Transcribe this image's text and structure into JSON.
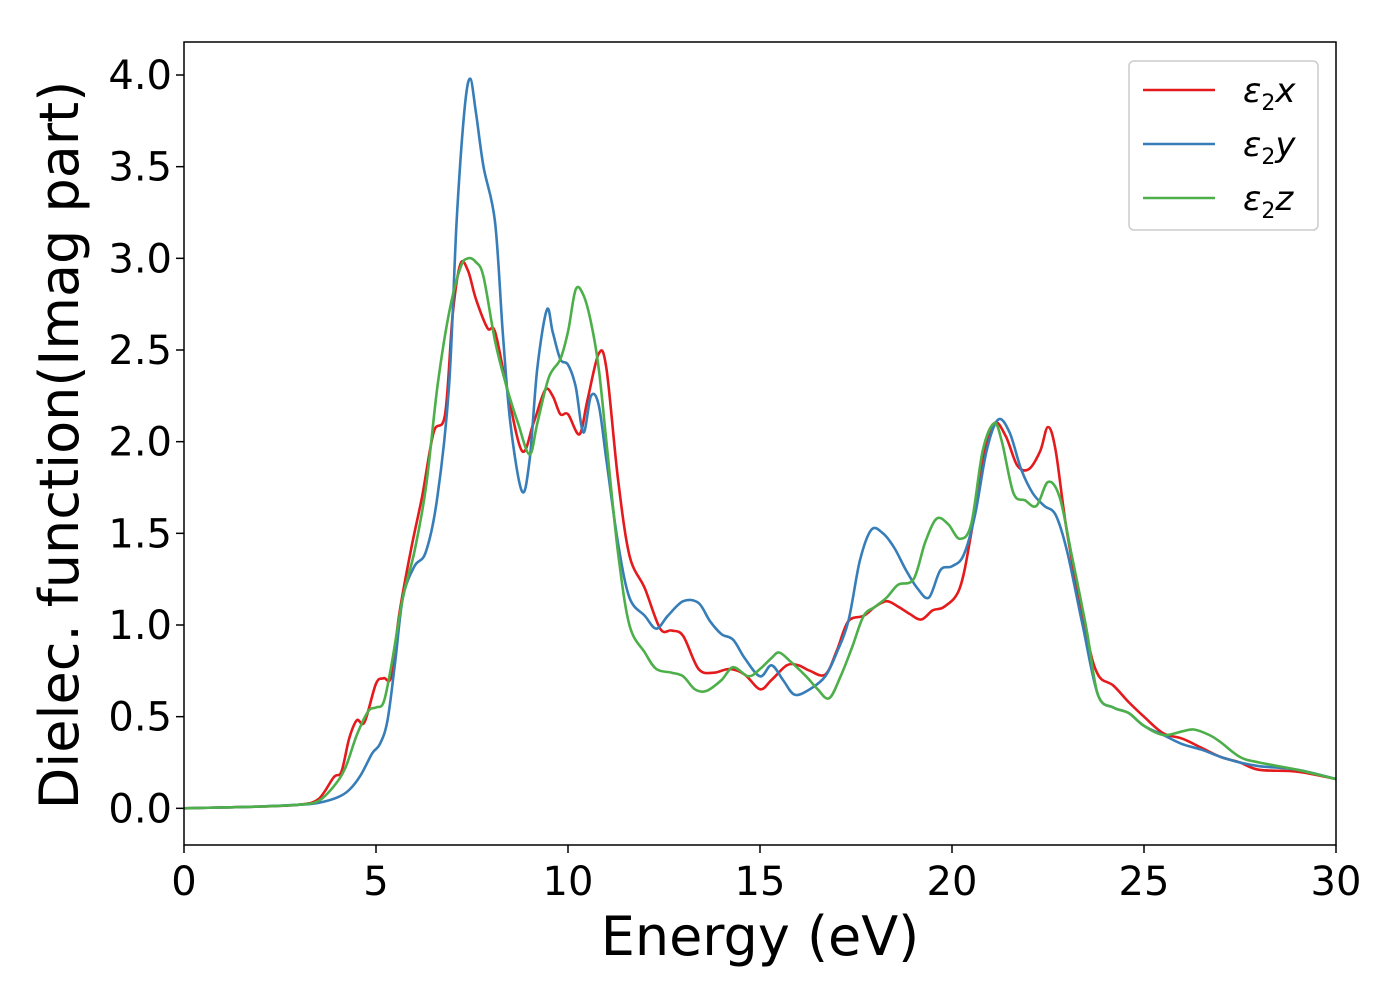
{
  "chart_data": {
    "type": "line",
    "title": "",
    "xlabel": "Energy (eV)",
    "ylabel": "Dielec. function(Imag part)",
    "xlim": [
      0,
      30
    ],
    "ylim": [
      -0.2,
      4.18
    ],
    "xticks": [
      0,
      5,
      10,
      15,
      20,
      25,
      30
    ],
    "yticks": [
      0.0,
      0.5,
      1.0,
      1.5,
      2.0,
      2.5,
      3.0,
      3.5,
      4.0
    ],
    "xtick_labels": [
      "0",
      "5",
      "10",
      "15",
      "20",
      "25",
      "30"
    ],
    "ytick_labels": [
      "0.0",
      "0.5",
      "1.0",
      "1.5",
      "2.0",
      "2.5",
      "3.0",
      "3.5",
      "4.0"
    ],
    "grid": false,
    "legend_position": "top-right",
    "series": [
      {
        "name": "x",
        "legend_symbol": "ε",
        "legend_subscript": "2",
        "color": "#e41a1c",
        "points": [
          [
            0,
            0.0
          ],
          [
            1,
            0.005
          ],
          [
            2,
            0.01
          ],
          [
            3,
            0.02
          ],
          [
            3.5,
            0.05
          ],
          [
            3.9,
            0.17
          ],
          [
            4.1,
            0.2
          ],
          [
            4.3,
            0.38
          ],
          [
            4.5,
            0.48
          ],
          [
            4.7,
            0.47
          ],
          [
            5.0,
            0.68
          ],
          [
            5.2,
            0.71
          ],
          [
            5.4,
            0.72
          ],
          [
            5.6,
            1.05
          ],
          [
            5.9,
            1.4
          ],
          [
            6.2,
            1.7
          ],
          [
            6.5,
            2.05
          ],
          [
            6.8,
            2.15
          ],
          [
            7.0,
            2.7
          ],
          [
            7.2,
            2.97
          ],
          [
            7.4,
            2.93
          ],
          [
            7.6,
            2.78
          ],
          [
            7.9,
            2.62
          ],
          [
            8.1,
            2.6
          ],
          [
            8.4,
            2.3
          ],
          [
            8.8,
            1.95
          ],
          [
            9.1,
            2.1
          ],
          [
            9.4,
            2.28
          ],
          [
            9.6,
            2.25
          ],
          [
            9.8,
            2.15
          ],
          [
            10.0,
            2.15
          ],
          [
            10.3,
            2.04
          ],
          [
            10.5,
            2.22
          ],
          [
            10.8,
            2.48
          ],
          [
            11.0,
            2.4
          ],
          [
            11.3,
            1.8
          ],
          [
            11.6,
            1.38
          ],
          [
            12.0,
            1.2
          ],
          [
            12.4,
            0.98
          ],
          [
            12.7,
            0.97
          ],
          [
            13.0,
            0.94
          ],
          [
            13.4,
            0.76
          ],
          [
            13.8,
            0.74
          ],
          [
            14.2,
            0.76
          ],
          [
            14.6,
            0.73
          ],
          [
            15.0,
            0.65
          ],
          [
            15.3,
            0.7
          ],
          [
            15.7,
            0.78
          ],
          [
            16.0,
            0.78
          ],
          [
            16.3,
            0.75
          ],
          [
            16.7,
            0.73
          ],
          [
            17.0,
            0.86
          ],
          [
            17.3,
            1.02
          ],
          [
            17.7,
            1.05
          ],
          [
            18.0,
            1.1
          ],
          [
            18.3,
            1.13
          ],
          [
            18.6,
            1.1
          ],
          [
            18.9,
            1.06
          ],
          [
            19.2,
            1.03
          ],
          [
            19.5,
            1.08
          ],
          [
            19.8,
            1.1
          ],
          [
            20.2,
            1.2
          ],
          [
            20.5,
            1.5
          ],
          [
            20.8,
            1.9
          ],
          [
            21.1,
            2.1
          ],
          [
            21.4,
            2.03
          ],
          [
            21.7,
            1.87
          ],
          [
            22.0,
            1.85
          ],
          [
            22.3,
            1.95
          ],
          [
            22.5,
            2.08
          ],
          [
            22.7,
            1.95
          ],
          [
            23.0,
            1.5
          ],
          [
            23.5,
            0.95
          ],
          [
            23.8,
            0.73
          ],
          [
            24.2,
            0.67
          ],
          [
            24.6,
            0.58
          ],
          [
            25.0,
            0.5
          ],
          [
            25.5,
            0.41
          ],
          [
            26.0,
            0.38
          ],
          [
            26.5,
            0.33
          ],
          [
            27.0,
            0.28
          ],
          [
            27.5,
            0.25
          ],
          [
            28.0,
            0.21
          ],
          [
            29.0,
            0.2
          ],
          [
            30,
            0.16
          ]
        ]
      },
      {
        "name": "y",
        "legend_symbol": "ε",
        "legend_subscript": "2",
        "color": "#377eb8",
        "points": [
          [
            0,
            0.0
          ],
          [
            1,
            0.005
          ],
          [
            2,
            0.01
          ],
          [
            3,
            0.02
          ],
          [
            3.5,
            0.03
          ],
          [
            4.0,
            0.06
          ],
          [
            4.3,
            0.1
          ],
          [
            4.6,
            0.18
          ],
          [
            4.9,
            0.3
          ],
          [
            5.1,
            0.35
          ],
          [
            5.3,
            0.48
          ],
          [
            5.5,
            0.8
          ],
          [
            5.7,
            1.15
          ],
          [
            6.0,
            1.32
          ],
          [
            6.3,
            1.4
          ],
          [
            6.6,
            1.7
          ],
          [
            6.9,
            2.3
          ],
          [
            7.1,
            3.2
          ],
          [
            7.3,
            3.8
          ],
          [
            7.45,
            3.98
          ],
          [
            7.6,
            3.8
          ],
          [
            7.8,
            3.5
          ],
          [
            8.1,
            3.2
          ],
          [
            8.3,
            2.6
          ],
          [
            8.5,
            2.1
          ],
          [
            8.8,
            1.73
          ],
          [
            9.0,
            1.9
          ],
          [
            9.2,
            2.4
          ],
          [
            9.45,
            2.72
          ],
          [
            9.6,
            2.6
          ],
          [
            9.8,
            2.45
          ],
          [
            10.0,
            2.42
          ],
          [
            10.2,
            2.3
          ],
          [
            10.4,
            2.05
          ],
          [
            10.6,
            2.25
          ],
          [
            10.8,
            2.2
          ],
          [
            11.0,
            1.9
          ],
          [
            11.3,
            1.45
          ],
          [
            11.6,
            1.15
          ],
          [
            12.0,
            1.05
          ],
          [
            12.3,
            0.98
          ],
          [
            12.6,
            1.05
          ],
          [
            13.0,
            1.13
          ],
          [
            13.4,
            1.12
          ],
          [
            13.7,
            1.02
          ],
          [
            14.0,
            0.95
          ],
          [
            14.3,
            0.92
          ],
          [
            14.6,
            0.82
          ],
          [
            15.0,
            0.72
          ],
          [
            15.3,
            0.78
          ],
          [
            15.6,
            0.7
          ],
          [
            15.9,
            0.62
          ],
          [
            16.3,
            0.65
          ],
          [
            16.7,
            0.72
          ],
          [
            17.0,
            0.85
          ],
          [
            17.3,
            1.02
          ],
          [
            17.6,
            1.35
          ],
          [
            17.9,
            1.52
          ],
          [
            18.2,
            1.5
          ],
          [
            18.5,
            1.42
          ],
          [
            18.8,
            1.3
          ],
          [
            19.1,
            1.2
          ],
          [
            19.4,
            1.15
          ],
          [
            19.7,
            1.3
          ],
          [
            20.0,
            1.32
          ],
          [
            20.3,
            1.38
          ],
          [
            20.6,
            1.6
          ],
          [
            20.9,
            1.95
          ],
          [
            21.2,
            2.12
          ],
          [
            21.5,
            2.05
          ],
          [
            21.8,
            1.85
          ],
          [
            22.1,
            1.72
          ],
          [
            22.4,
            1.65
          ],
          [
            22.7,
            1.6
          ],
          [
            23.0,
            1.4
          ],
          [
            23.4,
            1.0
          ],
          [
            23.8,
            0.62
          ],
          [
            24.2,
            0.55
          ],
          [
            24.6,
            0.52
          ],
          [
            25.0,
            0.45
          ],
          [
            25.5,
            0.4
          ],
          [
            26.0,
            0.35
          ],
          [
            26.5,
            0.32
          ],
          [
            27.0,
            0.28
          ],
          [
            27.5,
            0.25
          ],
          [
            28.0,
            0.23
          ],
          [
            29.0,
            0.21
          ],
          [
            30,
            0.16
          ]
        ]
      },
      {
        "name": "z",
        "legend_symbol": "ε",
        "legend_subscript": "2",
        "color": "#4daf4a",
        "points": [
          [
            0,
            0.0
          ],
          [
            1,
            0.005
          ],
          [
            2,
            0.01
          ],
          [
            3,
            0.02
          ],
          [
            3.5,
            0.04
          ],
          [
            3.9,
            0.12
          ],
          [
            4.2,
            0.22
          ],
          [
            4.5,
            0.4
          ],
          [
            4.8,
            0.53
          ],
          [
            5.0,
            0.55
          ],
          [
            5.2,
            0.58
          ],
          [
            5.4,
            0.78
          ],
          [
            5.7,
            1.15
          ],
          [
            6.0,
            1.4
          ],
          [
            6.3,
            1.75
          ],
          [
            6.6,
            2.3
          ],
          [
            6.9,
            2.7
          ],
          [
            7.2,
            2.95
          ],
          [
            7.4,
            3.0
          ],
          [
            7.6,
            2.98
          ],
          [
            7.8,
            2.9
          ],
          [
            8.1,
            2.55
          ],
          [
            8.4,
            2.3
          ],
          [
            8.7,
            2.1
          ],
          [
            9.0,
            1.93
          ],
          [
            9.2,
            2.1
          ],
          [
            9.5,
            2.35
          ],
          [
            9.8,
            2.45
          ],
          [
            10.0,
            2.6
          ],
          [
            10.2,
            2.83
          ],
          [
            10.4,
            2.8
          ],
          [
            10.6,
            2.65
          ],
          [
            10.8,
            2.4
          ],
          [
            11.0,
            2.0
          ],
          [
            11.3,
            1.4
          ],
          [
            11.6,
            1.0
          ],
          [
            12.0,
            0.85
          ],
          [
            12.3,
            0.76
          ],
          [
            12.7,
            0.74
          ],
          [
            13.0,
            0.72
          ],
          [
            13.3,
            0.65
          ],
          [
            13.6,
            0.64
          ],
          [
            14.0,
            0.7
          ],
          [
            14.3,
            0.77
          ],
          [
            14.7,
            0.72
          ],
          [
            15.0,
            0.76
          ],
          [
            15.3,
            0.82
          ],
          [
            15.5,
            0.85
          ],
          [
            15.8,
            0.8
          ],
          [
            16.2,
            0.72
          ],
          [
            16.5,
            0.65
          ],
          [
            16.8,
            0.6
          ],
          [
            17.1,
            0.72
          ],
          [
            17.4,
            0.88
          ],
          [
            17.7,
            1.05
          ],
          [
            18.0,
            1.1
          ],
          [
            18.3,
            1.15
          ],
          [
            18.6,
            1.22
          ],
          [
            19.0,
            1.25
          ],
          [
            19.3,
            1.45
          ],
          [
            19.6,
            1.58
          ],
          [
            19.9,
            1.55
          ],
          [
            20.2,
            1.47
          ],
          [
            20.5,
            1.55
          ],
          [
            20.8,
            1.95
          ],
          [
            21.1,
            2.1
          ],
          [
            21.3,
            2.0
          ],
          [
            21.6,
            1.72
          ],
          [
            21.9,
            1.68
          ],
          [
            22.2,
            1.65
          ],
          [
            22.5,
            1.78
          ],
          [
            22.8,
            1.7
          ],
          [
            23.1,
            1.4
          ],
          [
            23.5,
            0.98
          ],
          [
            23.8,
            0.62
          ],
          [
            24.2,
            0.55
          ],
          [
            24.6,
            0.52
          ],
          [
            25.0,
            0.45
          ],
          [
            25.5,
            0.4
          ],
          [
            26.0,
            0.42
          ],
          [
            26.3,
            0.43
          ],
          [
            26.7,
            0.4
          ],
          [
            27.0,
            0.36
          ],
          [
            27.5,
            0.28
          ],
          [
            28.0,
            0.25
          ],
          [
            29.0,
            0.21
          ],
          [
            30,
            0.16
          ]
        ]
      }
    ]
  }
}
